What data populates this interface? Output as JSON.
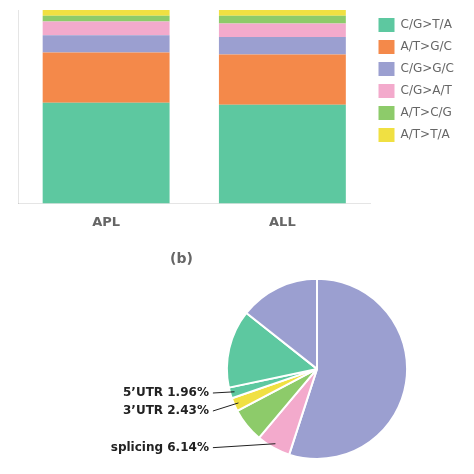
{
  "chart_data": [
    {
      "type": "bar",
      "categories": [
        "APL",
        "ALL"
      ],
      "series": [
        {
          "name": "C/G>T/A",
          "color": "#5DC8A0",
          "values": [
            0.52,
            0.51
          ]
        },
        {
          "name": "A/T>G/C",
          "color": "#F4894A",
          "values": [
            0.26,
            0.26
          ]
        },
        {
          "name": "C/G>G/C",
          "color": "#9B9FD0",
          "values": [
            0.09,
            0.09
          ]
        },
        {
          "name": "C/G>A/T",
          "color": "#F3AACC",
          "values": [
            0.07,
            0.07
          ]
        },
        {
          "name": "A/T>C/G",
          "color": "#8DCB6A",
          "values": [
            0.03,
            0.04
          ]
        },
        {
          "name": "A/T>T/A",
          "color": "#F0E042",
          "values": [
            0.03,
            0.03
          ]
        }
      ],
      "stacked": true,
      "ylim": [
        0,
        1.0
      ],
      "grid": false,
      "legend": "right",
      "tick_labels": "x"
    },
    {
      "type": "pie",
      "title": "(b)",
      "categories": [
        null,
        "splicing 6.14%",
        null,
        "3’UTR 2.43%",
        "5’UTR 1.96%",
        null,
        null
      ],
      "values": [
        55.0,
        6.14,
        6.14,
        2.43,
        1.96,
        14.0,
        14.33
      ],
      "colors": [
        "#9B9FD0",
        "#F3AACC",
        "#8DCB6A",
        "#F0E042",
        "#5DC8A0",
        "#5DC8A0",
        "#9B9FD0"
      ]
    }
  ]
}
